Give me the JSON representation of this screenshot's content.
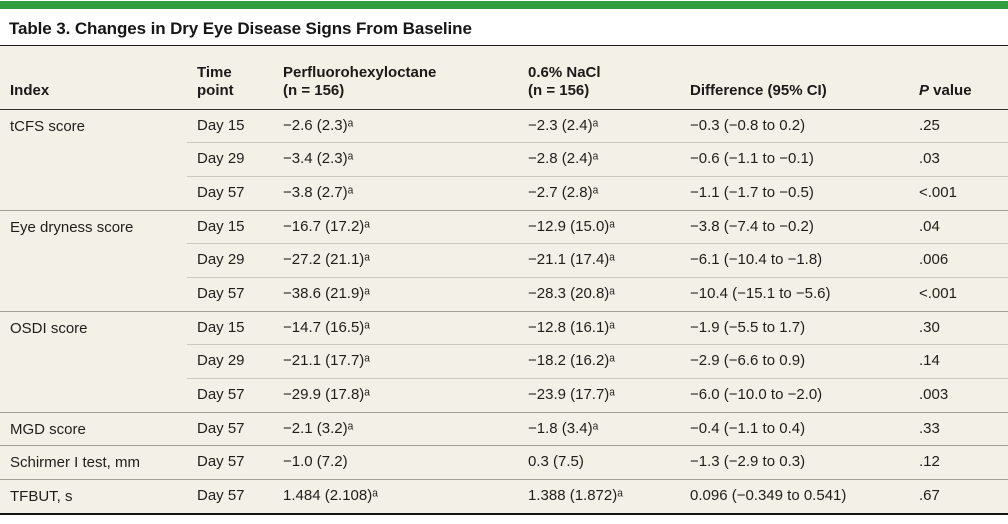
{
  "accent_color": "#2f9e41",
  "title": "Table 3. Changes in Dry Eye Disease Signs From Baseline",
  "table": {
    "header": {
      "index": "Index",
      "time_line1": "Time",
      "time_line2": "point",
      "drug_line1": "Perfluorohexyloctane",
      "drug_line2": "(n = 156)",
      "nacl_line1": "0.6% NaCl",
      "nacl_line2": "(n = 156)",
      "diff": "Difference (95% CI)",
      "p_italic": "P",
      "p_rest": " value"
    },
    "rows": [
      {
        "index": "tCFS score",
        "time": "Day 15",
        "drug": "−2.6 (2.3)ᵃ",
        "nacl": "−2.3 (2.4)ᵃ",
        "diff": "−0.3 (−0.8 to 0.2)",
        "p": ".25"
      },
      {
        "time": "Day 29",
        "drug": "−3.4 (2.3)ᵃ",
        "nacl": "−2.8 (2.4)ᵃ",
        "diff": "−0.6 (−1.1 to −0.1)",
        "p": ".03"
      },
      {
        "time": "Day 57",
        "drug": "−3.8 (2.7)ᵃ",
        "nacl": "−2.7 (2.8)ᵃ",
        "diff": "−1.1 (−1.7 to −0.5)",
        "p": "<.001"
      },
      {
        "index": "Eye dryness score",
        "time": "Day 15",
        "drug": "−16.7 (17.2)ᵃ",
        "nacl": "−12.9 (15.0)ᵃ",
        "diff": "−3.8 (−7.4 to −0.2)",
        "p": ".04"
      },
      {
        "time": "Day 29",
        "drug": "−27.2 (21.1)ᵃ",
        "nacl": "−21.1 (17.4)ᵃ",
        "diff": "−6.1 (−10.4 to −1.8)",
        "p": ".006"
      },
      {
        "time": "Day 57",
        "drug": "−38.6 (21.9)ᵃ",
        "nacl": "−28.3 (20.8)ᵃ",
        "diff": "−10.4 (−15.1 to −5.6)",
        "p": "<.001"
      },
      {
        "index": "OSDI score",
        "time": "Day 15",
        "drug": "−14.7 (16.5)ᵃ",
        "nacl": "−12.8 (16.1)ᵃ",
        "diff": "−1.9 (−5.5 to 1.7)",
        "p": ".30"
      },
      {
        "time": "Day 29",
        "drug": "−21.1 (17.7)ᵃ",
        "nacl": "−18.2 (16.2)ᵃ",
        "diff": "−2.9 (−6.6 to 0.9)",
        "p": ".14"
      },
      {
        "time": "Day 57",
        "drug": "−29.9 (17.8)ᵃ",
        "nacl": "−23.9 (17.7)ᵃ",
        "diff": "−6.0 (−10.0 to −2.0)",
        "p": ".003"
      },
      {
        "index": "MGD score",
        "time": "Day 57",
        "drug": "−2.1 (3.2)ᵃ",
        "nacl": "−1.8 (3.4)ᵃ",
        "diff": "−0.4 (−1.1 to 0.4)",
        "p": ".33"
      },
      {
        "index": "Schirmer I test, mm",
        "time": "Day 57",
        "drug": "−1.0 (7.2)",
        "nacl": "0.3 (7.5)",
        "diff": "−1.3 (−2.9 to 0.3)",
        "p": ".12"
      },
      {
        "index": "TFBUT, s",
        "time": "Day 57",
        "drug": "1.484 (2.108)ᵃ",
        "nacl": "1.388 (1.872)ᵃ",
        "diff": "0.096 (−0.349 to 0.541)",
        "p": ".67"
      }
    ]
  }
}
